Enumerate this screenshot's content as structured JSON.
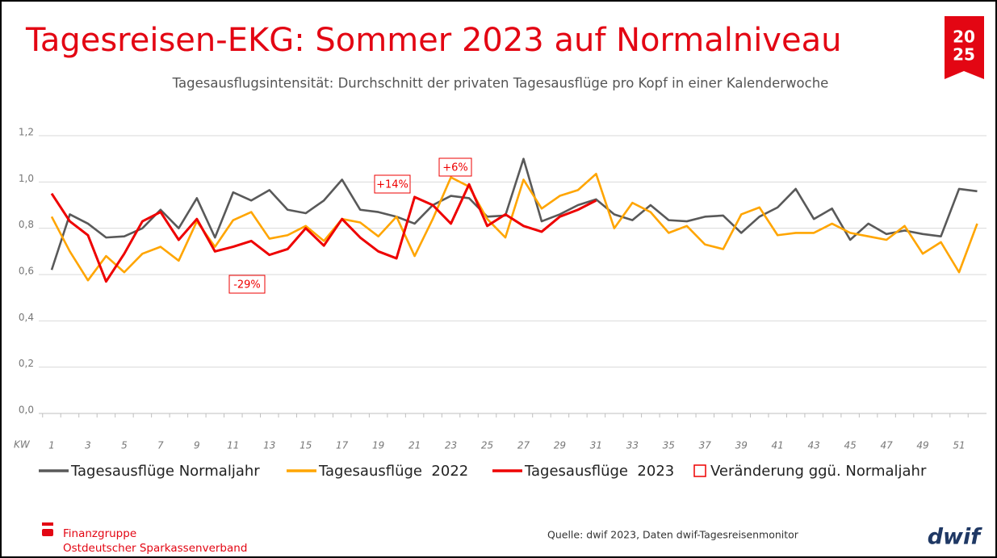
{
  "chart_data": {
    "type": "line",
    "title": "Tagesreisen-EKG: Sommer 2023 auf Normalniveau",
    "subtitle": "Tagesausflugsintensität: Durchschnitt der privaten Tagesausflüge pro Kopf in einer Kalenderwoche",
    "x_label": "KW",
    "categories": [
      "1",
      null,
      "3",
      null,
      "5",
      null,
      "7",
      null,
      "9",
      null,
      "11",
      null,
      "13",
      null,
      "15",
      null,
      "17",
      null,
      "19",
      null,
      "21",
      null,
      "23",
      null,
      "25",
      null,
      "27",
      null,
      "29",
      null,
      "31",
      null,
      "33",
      null,
      "35",
      null,
      "37",
      null,
      "39",
      null,
      "41",
      null,
      "43",
      null,
      "45",
      null,
      "47",
      null,
      "49",
      null,
      "51",
      null
    ],
    "series": [
      {
        "name": "Tagesausflüge Normaljahr",
        "color": "#595959",
        "values": [
          0.62,
          0.86,
          0.82,
          0.76,
          0.765,
          0.8,
          0.88,
          0.8,
          0.93,
          0.76,
          0.955,
          0.92,
          0.965,
          0.88,
          0.865,
          0.92,
          1.01,
          0.88,
          0.87,
          0.85,
          0.82,
          0.9,
          0.94,
          0.93,
          0.85,
          0.855,
          1.1,
          0.83,
          0.86,
          0.9,
          0.925,
          0.86,
          0.835,
          0.9,
          0.835,
          0.83,
          0.85,
          0.855,
          0.78,
          0.85,
          0.89,
          0.97,
          0.84,
          0.885,
          0.75,
          0.82,
          0.775,
          0.79,
          0.775,
          0.765,
          0.97,
          0.96
        ]
      },
      {
        "name": "Tagesausflüge  2022",
        "color": "#ffa500",
        "values": [
          0.85,
          0.7,
          0.575,
          0.68,
          0.61,
          0.69,
          0.72,
          0.66,
          0.83,
          0.72,
          0.835,
          0.87,
          0.755,
          0.77,
          0.81,
          0.745,
          0.84,
          0.825,
          0.765,
          0.85,
          0.68,
          0.84,
          1.02,
          0.98,
          0.84,
          0.76,
          1.01,
          0.885,
          0.94,
          0.965,
          1.035,
          0.8,
          0.91,
          0.87,
          0.78,
          0.81,
          0.73,
          0.71,
          0.86,
          0.89,
          0.77,
          0.78,
          0.78,
          0.82,
          0.78,
          0.765,
          0.75,
          0.81,
          0.69,
          0.74,
          0.61,
          0.82
        ]
      },
      {
        "name": "Tagesausflüge  2023",
        "color": "#ee0000",
        "values": [
          0.95,
          0.83,
          0.77,
          0.57,
          0.69,
          0.83,
          0.87,
          0.75,
          0.84,
          0.7,
          0.72,
          0.745,
          0.685,
          0.71,
          0.8,
          0.725,
          0.84,
          0.76,
          0.7,
          0.67,
          0.935,
          0.9,
          0.82,
          0.99,
          0.81,
          0.86,
          0.81,
          0.785,
          0.85,
          0.88,
          0.92,
          null,
          null,
          null,
          null,
          null,
          null,
          null,
          null,
          null,
          null,
          null,
          null,
          null,
          null,
          null,
          null,
          null,
          null,
          null,
          null,
          null
        ]
      }
    ],
    "annotations": [
      "+14%",
      "+6%",
      "-29%"
    ],
    "annotation_legend": "Veränderung ggü. Normaljahr",
    "ylim": [
      0,
      1.2
    ],
    "yticks": [
      {
        "value": 0,
        "label": "0,0"
      },
      {
        "value": 0.2,
        "label": "0,2"
      },
      {
        "value": 0.4,
        "label": "0,4"
      },
      {
        "value": 0.6,
        "label": "0,6"
      },
      {
        "value": 0.8,
        "label": "0,8"
      },
      {
        "value": 1,
        "label": "1,0"
      },
      {
        "value": 1.2,
        "label": "1,2"
      }
    ],
    "grid": true
  },
  "footer": {
    "org_line1": "Finanzgruppe",
    "org_line2": "Ostdeutscher Sparkassenverband",
    "source": "Quelle: dwif 2023, Daten dwif-Tagesreisenmonitor",
    "logo": "dwif",
    "badge_top": "20",
    "badge_bottom": "25"
  }
}
